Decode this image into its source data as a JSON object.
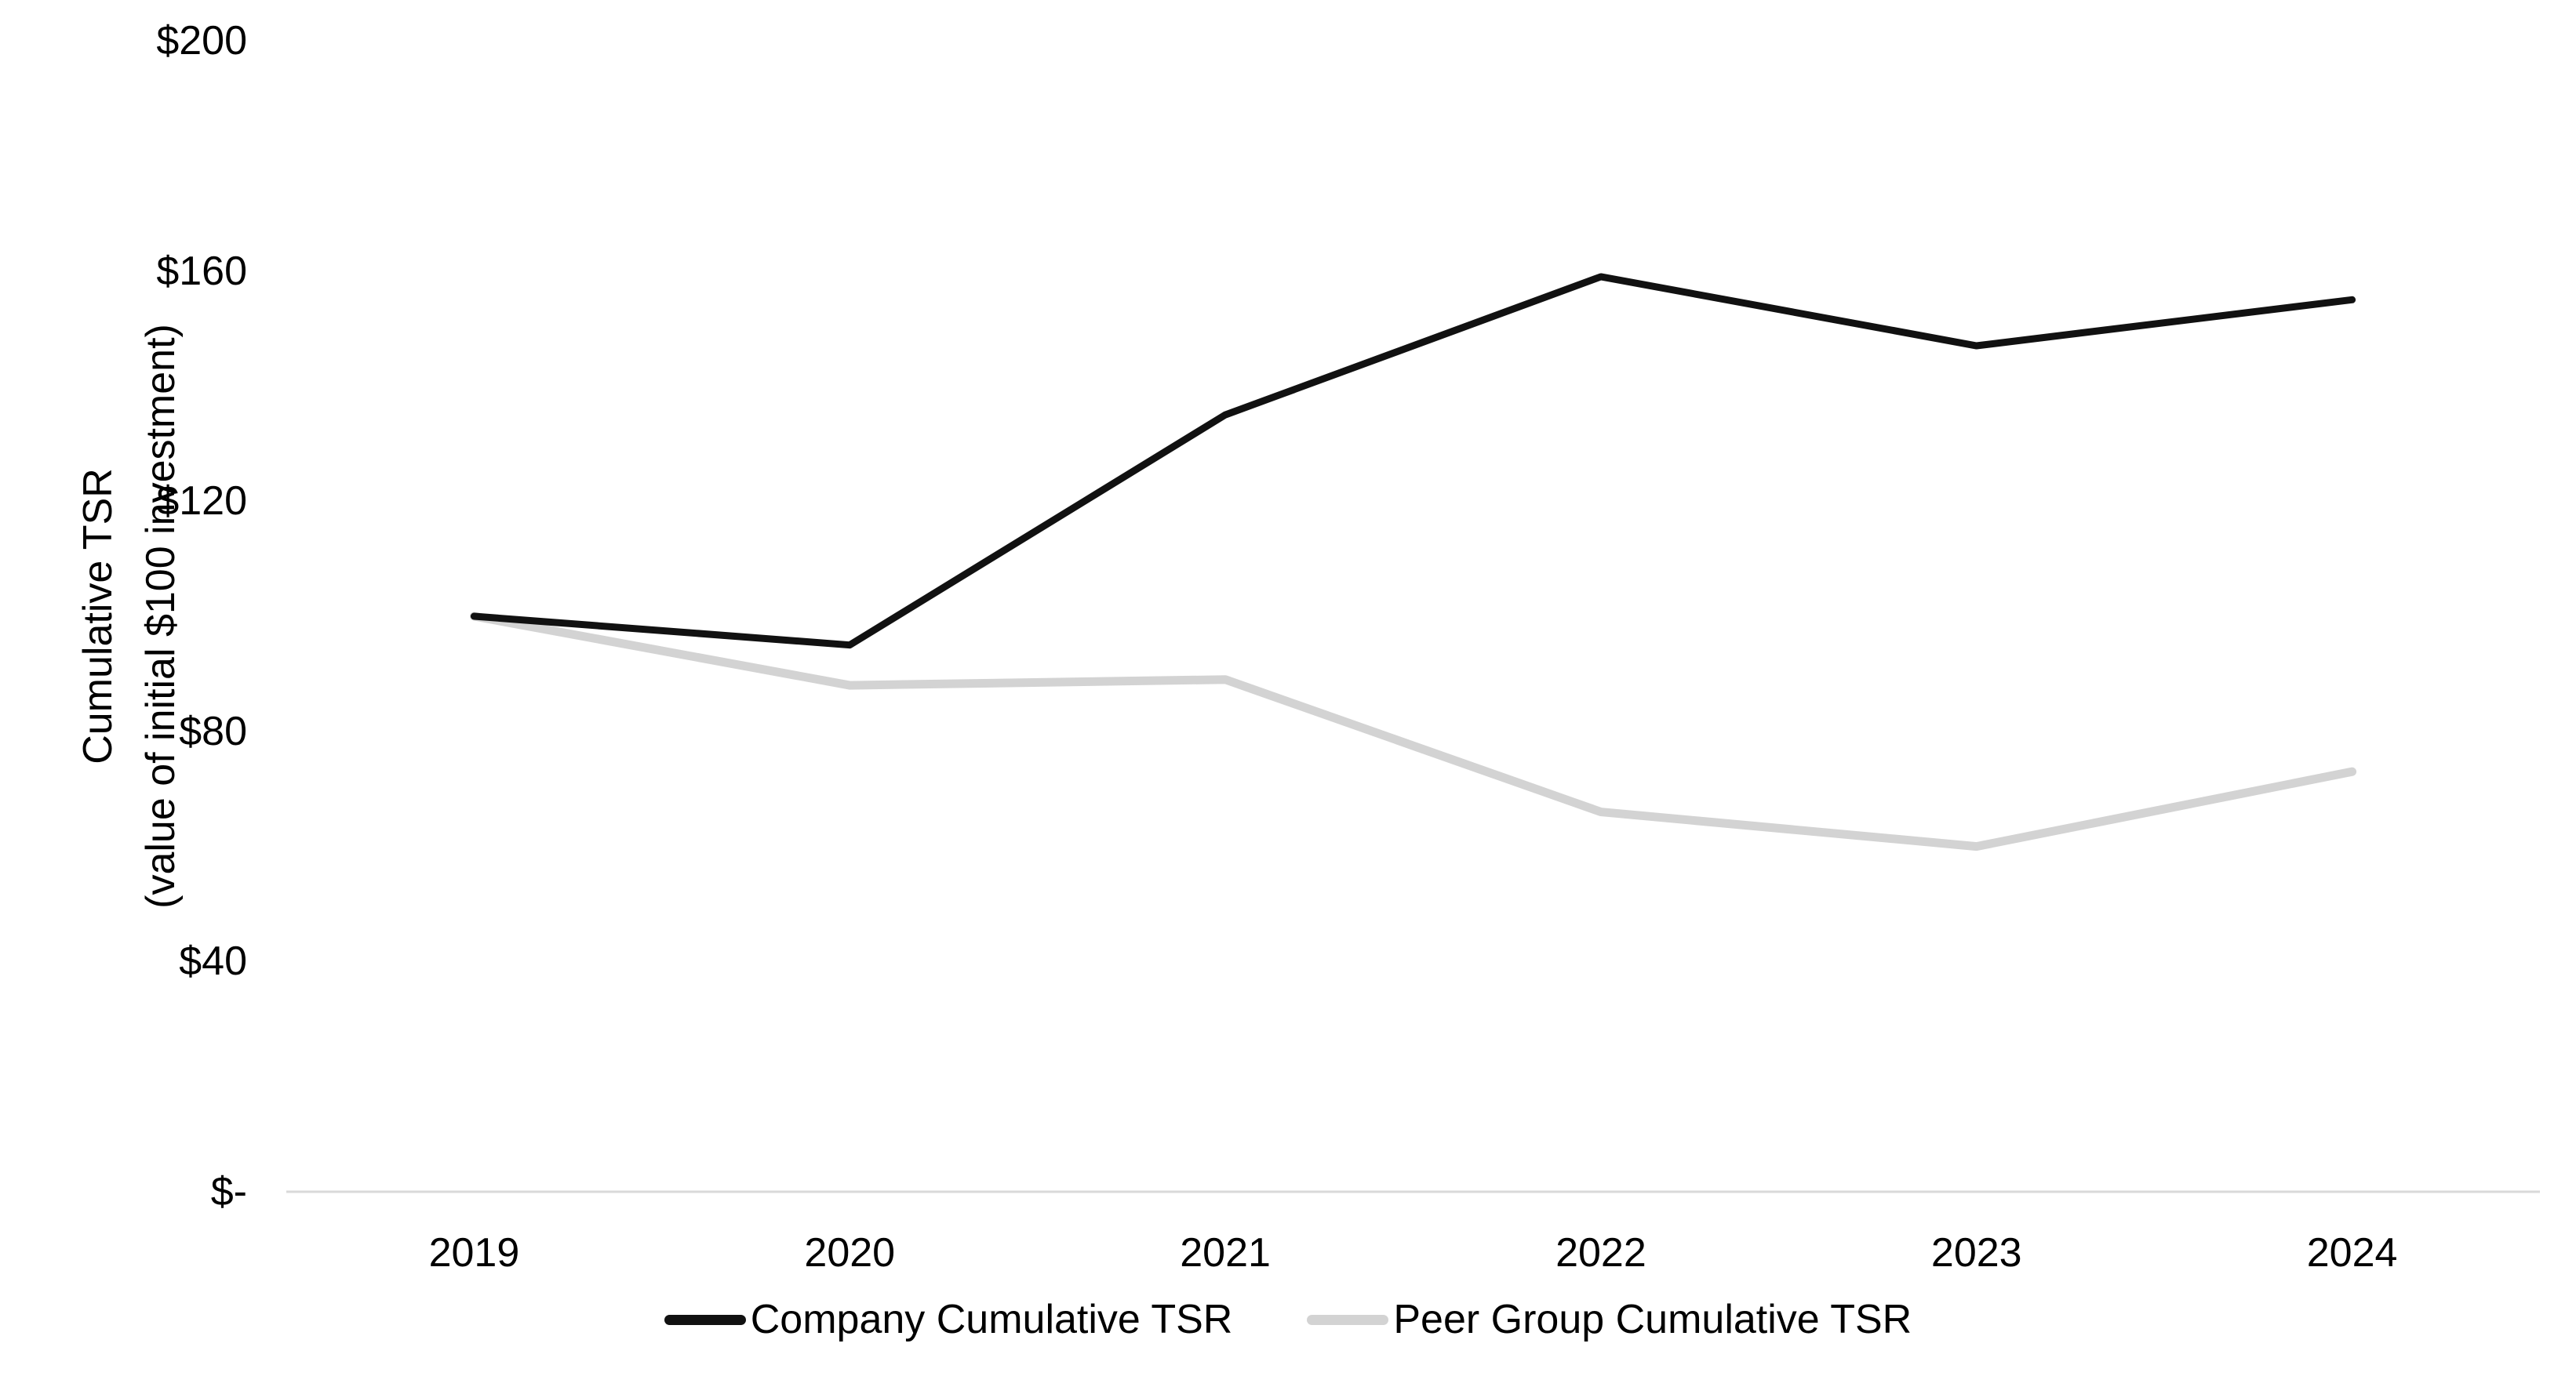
{
  "chart_data": {
    "type": "line",
    "categories": [
      "2019",
      "2020",
      "2021",
      "2022",
      "2023",
      "2024"
    ],
    "series": [
      {
        "name": "Company Cumulative TSR",
        "color": "#111111",
        "stroke_width": 9,
        "values": [
          100,
          95,
          135,
          159,
          147,
          155
        ]
      },
      {
        "name": "Peer Group Cumulative TSR",
        "color": "#d3d3d3",
        "stroke_width": 11,
        "values": [
          100,
          88,
          89,
          66,
          60,
          73
        ]
      }
    ],
    "title": "",
    "xlabel": "",
    "ylabel_line1": "Cumulative TSR",
    "ylabel_line2": "(value of initial $100 investment)",
    "ylim": [
      0,
      200
    ],
    "ytick_step": 40,
    "yticks": [
      {
        "value": 0,
        "label": "$-"
      },
      {
        "value": 40,
        "label": "$40"
      },
      {
        "value": 80,
        "label": "$80"
      },
      {
        "value": 120,
        "label": "$120"
      },
      {
        "value": 160,
        "label": "$160"
      },
      {
        "value": 200,
        "label": "$200"
      }
    ],
    "grid": false,
    "legend_position": "bottom"
  },
  "axis": {
    "baseline_color": "#d9d9d9",
    "baseline_width": 3
  }
}
